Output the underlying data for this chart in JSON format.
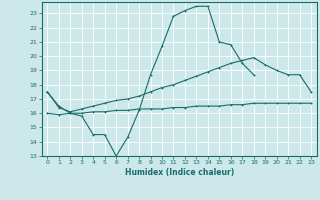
{
  "xlabel": "Humidex (Indice chaleur)",
  "bg_color": "#cce8e8",
  "grid_color": "#ffffff",
  "line_color": "#1a6b6b",
  "xlim": [
    -0.5,
    23.5
  ],
  "ylim": [
    13,
    23.8
  ],
  "xticks": [
    0,
    1,
    2,
    3,
    4,
    5,
    6,
    7,
    8,
    9,
    10,
    11,
    12,
    13,
    14,
    15,
    16,
    17,
    18,
    19,
    20,
    21,
    22,
    23
  ],
  "yticks": [
    13,
    14,
    15,
    16,
    17,
    18,
    19,
    20,
    21,
    22,
    23
  ],
  "line1_x": [
    0,
    1,
    2,
    3,
    4,
    5,
    6,
    7,
    8,
    9,
    10,
    11,
    12,
    13,
    14,
    15,
    16,
    17,
    18
  ],
  "line1_y": [
    17.5,
    16.5,
    16.0,
    15.8,
    14.5,
    14.5,
    13.0,
    14.3,
    16.2,
    18.7,
    20.7,
    22.8,
    23.2,
    23.5,
    23.5,
    21.0,
    20.8,
    19.5,
    18.7
  ],
  "line2_x": [
    0,
    1,
    2,
    3,
    4,
    5,
    6,
    7,
    8,
    9,
    10,
    11,
    12,
    13,
    14,
    15,
    16,
    17,
    18,
    19,
    20,
    21,
    22,
    23
  ],
  "line2_y": [
    17.5,
    16.4,
    16.1,
    16.3,
    16.5,
    16.7,
    16.9,
    17.0,
    17.2,
    17.5,
    17.8,
    18.0,
    18.3,
    18.6,
    18.9,
    19.2,
    19.5,
    19.7,
    19.9,
    19.4,
    19.0,
    18.7,
    18.7,
    17.5
  ],
  "line3_x": [
    0,
    1,
    2,
    3,
    4,
    5,
    6,
    7,
    8,
    9,
    10,
    11,
    12,
    13,
    14,
    15,
    16,
    17,
    18,
    19,
    20,
    21,
    22,
    23
  ],
  "line3_y": [
    16.0,
    15.9,
    16.0,
    16.0,
    16.1,
    16.1,
    16.2,
    16.2,
    16.3,
    16.3,
    16.3,
    16.4,
    16.4,
    16.5,
    16.5,
    16.5,
    16.6,
    16.6,
    16.7,
    16.7,
    16.7,
    16.7,
    16.7,
    16.7
  ]
}
